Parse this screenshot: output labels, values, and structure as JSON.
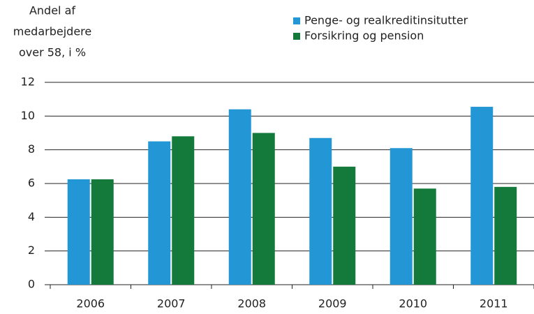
{
  "chart_data": {
    "type": "bar",
    "y_label": [
      "Andel af",
      "medarbejdere",
      "over 58, i %"
    ],
    "categories": [
      "2006",
      "2007",
      "2008",
      "2009",
      "2010",
      "2011"
    ],
    "series": [
      {
        "name": "Penge- og realkreditinsitutter",
        "color": "#2397d6",
        "values": [
          6.25,
          8.5,
          10.4,
          8.7,
          8.1,
          10.55
        ]
      },
      {
        "name": "Forsikring og pension",
        "color": "#137a3c",
        "values": [
          6.25,
          8.8,
          9.0,
          7.0,
          5.7,
          5.8
        ]
      }
    ],
    "ylim": [
      0,
      12
    ],
    "yticks": [
      0,
      2,
      4,
      6,
      8,
      10,
      12
    ],
    "grid": true,
    "legend": "top-right"
  }
}
